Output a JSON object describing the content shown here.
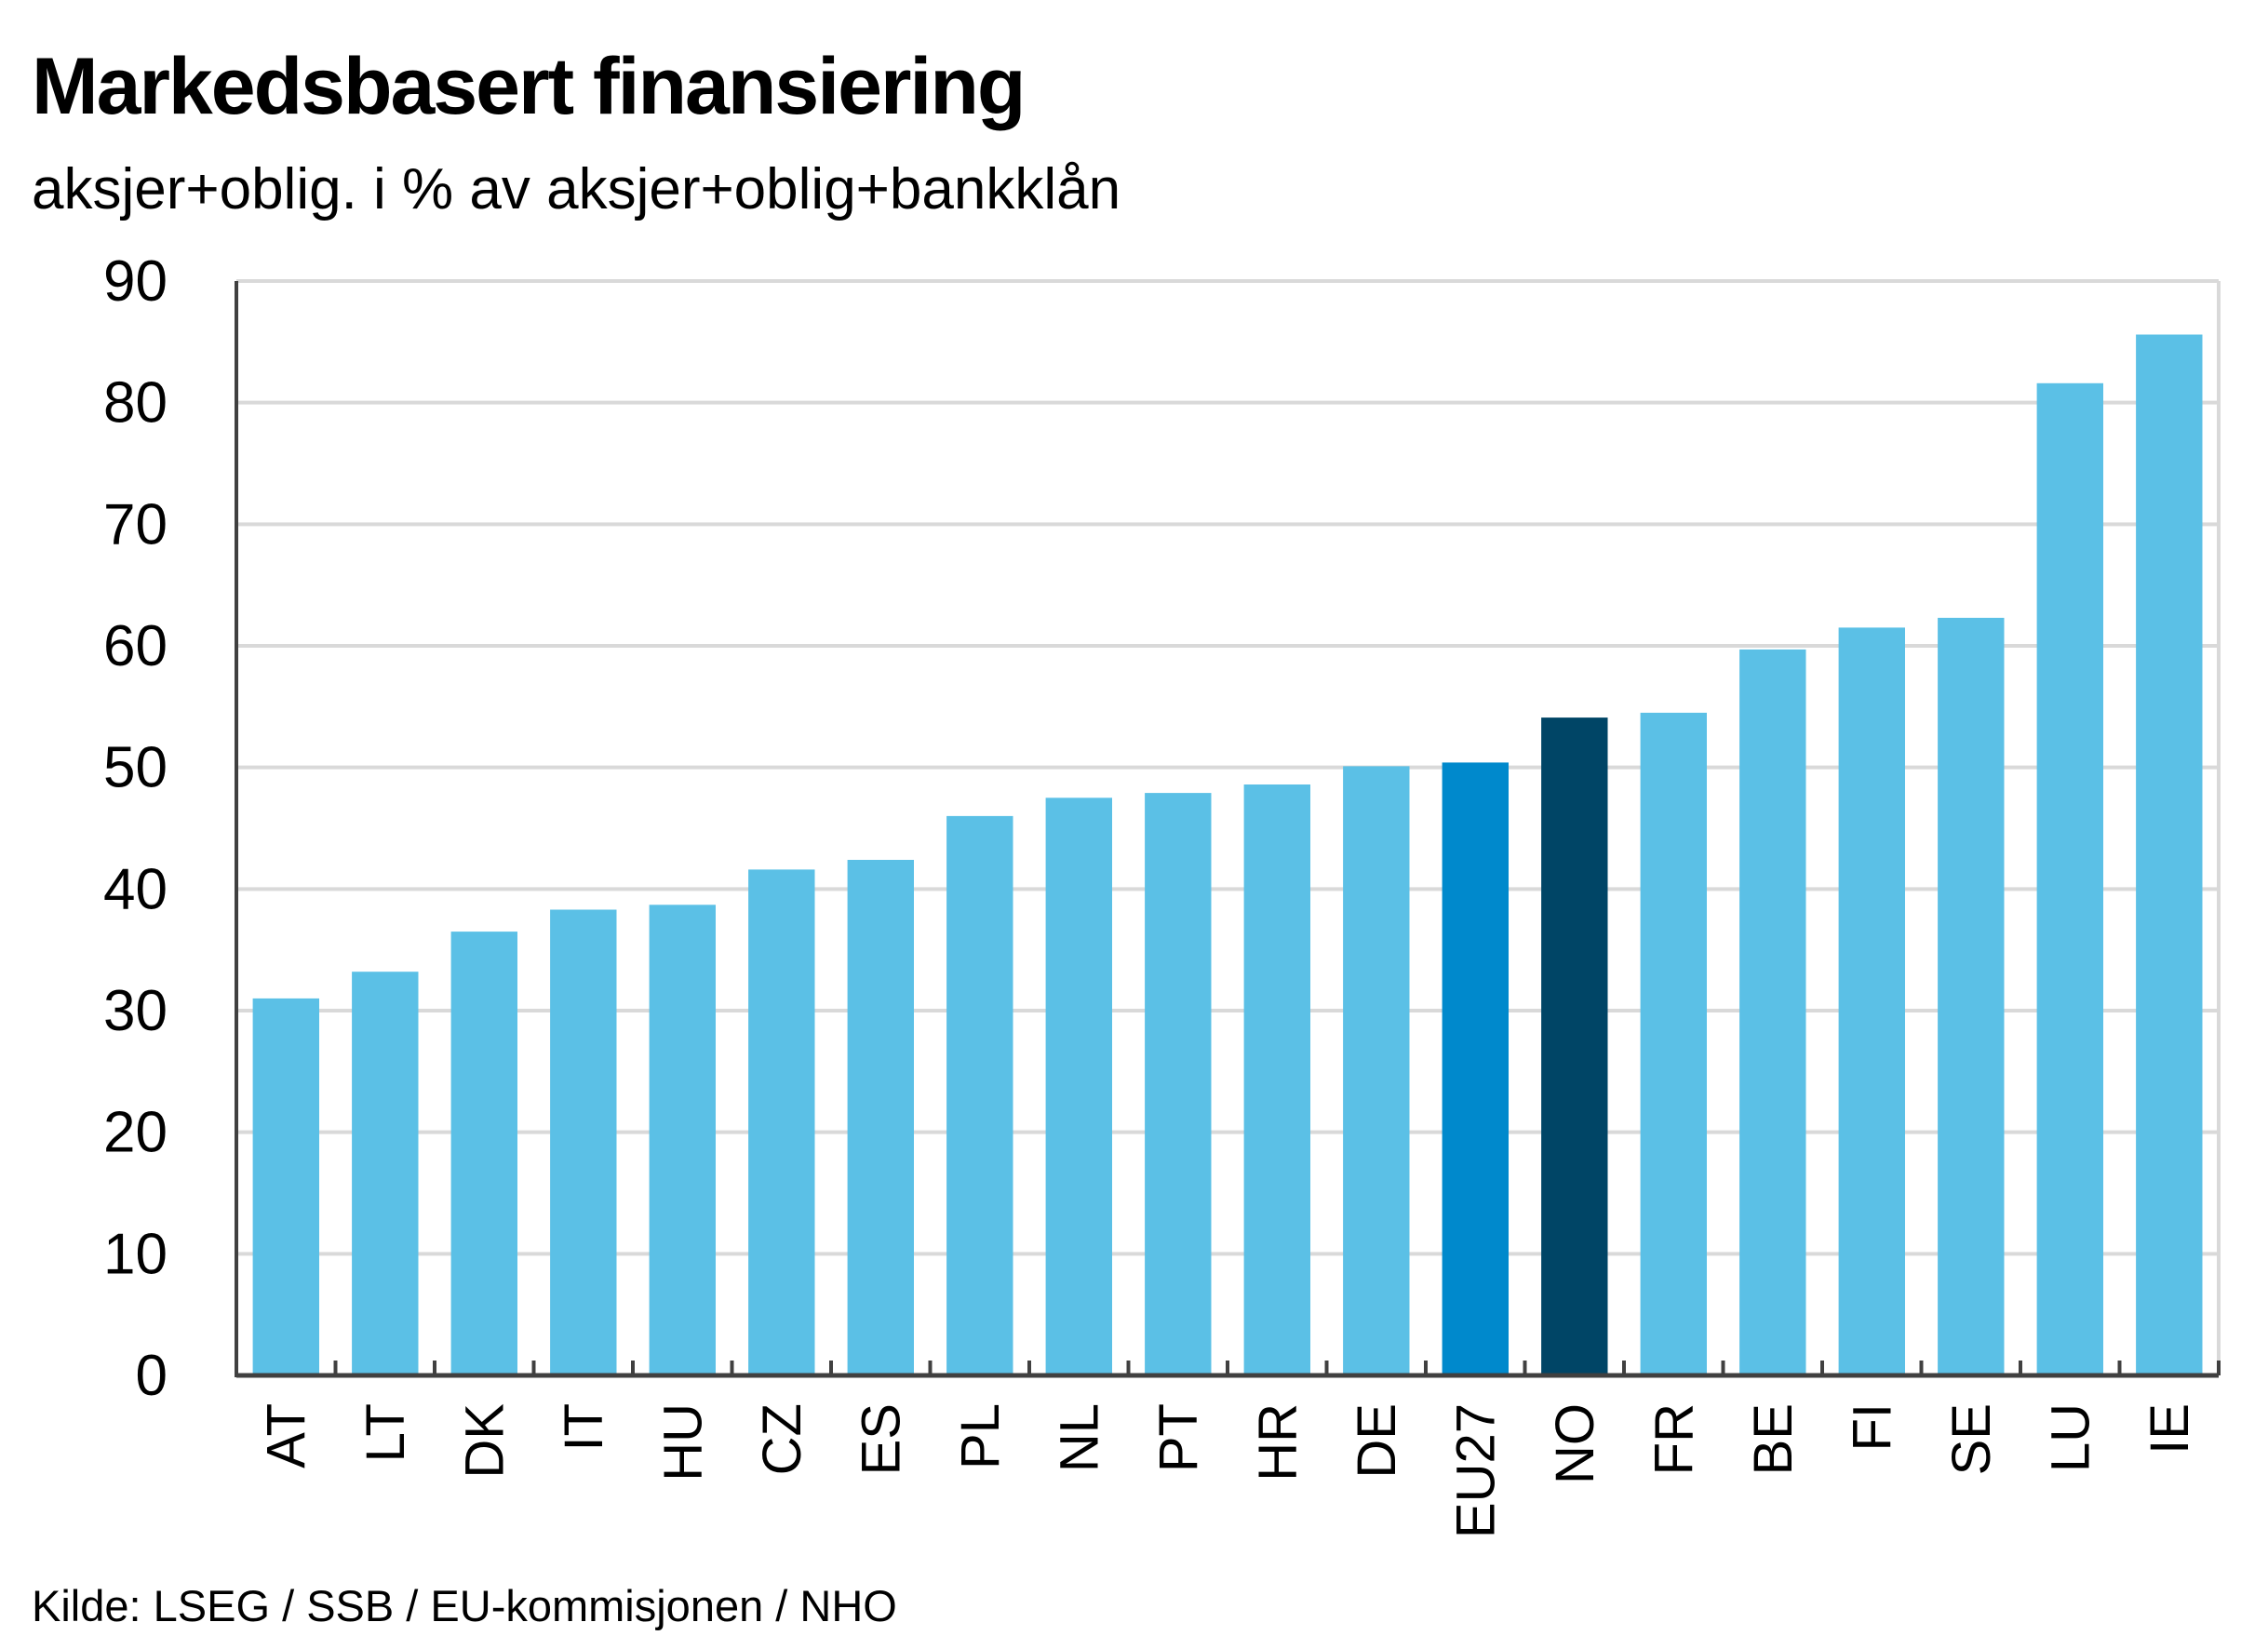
{
  "title": "Markedsbasert finansiering",
  "subtitle": "aksjer+oblig. i % av aksjer+oblig+bankklån",
  "source": "Kilde: LSEG / SSB / EU-kommisjonen / NHO",
  "colors": {
    "default_bar": "#5bc0e6",
    "eu27_bar": "#0089cc",
    "no_bar": "#004566",
    "grid": "#d9d9d9",
    "axis": "#404040"
  },
  "chart_data": {
    "type": "bar",
    "title": "Markedsbasert finansiering",
    "subtitle": "aksjer+oblig. i % av aksjer+oblig+bankklån",
    "categories": [
      "AT",
      "LT",
      "DK",
      "IT",
      "HU",
      "CZ",
      "ES",
      "PL",
      "NL",
      "PT",
      "HR",
      "DE",
      "EU27",
      "NO",
      "FR",
      "BE",
      "FI",
      "SE",
      "LU",
      "IE"
    ],
    "values": [
      31.0,
      33.2,
      36.5,
      38.3,
      38.7,
      41.6,
      42.4,
      46.0,
      47.5,
      47.9,
      48.6,
      50.1,
      50.4,
      54.1,
      54.5,
      59.7,
      61.5,
      62.3,
      81.6,
      85.6
    ],
    "highlight": {
      "EU27": "#0089cc",
      "NO": "#004566"
    },
    "ylim": [
      0,
      90
    ],
    "yticks": [
      0,
      10,
      20,
      30,
      40,
      50,
      60,
      70,
      80,
      90
    ],
    "xlabel": "",
    "ylabel": "",
    "grid": true,
    "legend": "none"
  }
}
